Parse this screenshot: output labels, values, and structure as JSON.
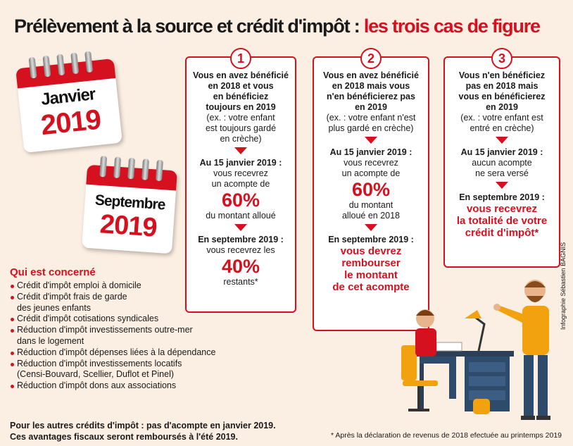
{
  "title": {
    "main": "Prélèvement à la source et crédit d'impôt : ",
    "highlight": "les trois cas de figure"
  },
  "calendar_january": {
    "month": "Janvier",
    "year": "2019"
  },
  "calendar_september": {
    "month": "Septembre",
    "year": "2019"
  },
  "cases": [
    {
      "number": "1",
      "intro": [
        "Vous en avez bénéficié",
        "en 2018 et vous",
        "en bénéficiez",
        "toujours en 2019"
      ],
      "example": [
        "(ex. : votre enfant",
        "est toujours gardé",
        "en crèche)"
      ],
      "jan_label": "Au 15 janvier 2019 :",
      "jan_text": [
        "vous recevrez",
        "un acompte de"
      ],
      "jan_pct": "60%",
      "jan_after": [
        "du montant alloué"
      ],
      "sep_label": "En septembre 2019 :",
      "sep_text": [
        "vous recevrez les"
      ],
      "sep_pct": "40%",
      "sep_after": [
        "restants*"
      ]
    },
    {
      "number": "2",
      "intro": [
        "Vous en avez bénéficié",
        "en 2018 mais vous",
        "n'en bénéficierez pas",
        "en 2019"
      ],
      "example": [
        "(ex. : votre enfant n'est",
        "plus gardé en crèche)"
      ],
      "jan_label": "Au 15 janvier 2019 :",
      "jan_text": [
        "vous recevrez",
        "un acompte de"
      ],
      "jan_pct": "60%",
      "jan_after": [
        "du montant",
        "alloué en 2018"
      ],
      "sep_label": "En septembre 2019 :",
      "sep_red": [
        "vous devrez",
        "rembourser",
        "le montant",
        "de cet acompte"
      ]
    },
    {
      "number": "3",
      "intro": [
        "Vous n'en bénéficiez",
        "pas en 2018 mais",
        "vous en bénéficierez",
        "en 2019"
      ],
      "example": [
        "(ex. : votre enfant est",
        "entré en crèche)"
      ],
      "jan_label": "Au 15 janvier 2019 :",
      "jan_text": [
        "aucun acompte",
        "ne sera versé"
      ],
      "sep_label": "En septembre 2019 :",
      "sep_red": [
        "vous recevrez",
        "la totalité de votre",
        "crédit d'impôt*"
      ]
    }
  ],
  "who": {
    "title": "Qui est concerné",
    "items": [
      "Crédit d'impôt emploi à domicile",
      "Crédit d'impôt frais de garde\ndes jeunes enfants",
      "Crédit d'impôt cotisations syndicales",
      "Réduction d'impôt investissements outre-mer\ndans le logement",
      "Réduction d'impôt dépenses liées à la dépendance",
      "Réduction d'impôt investissements locatifs\n(Censi-Bouvard, Scellier, Duflot et Pinel)",
      "Réduction d'impôt dons aux associations"
    ]
  },
  "footer": [
    "Pour les autres crédits d'impôt : pas d'acompte en janvier 2019.",
    "Ces avantages fiscaux seront remboursés à l'été 2019."
  ],
  "footnote": "* Après la déclaration de revenus de 2018 efectuée au printemps 2019",
  "credit": "Infographie Sébastien BAGNIS",
  "colors": {
    "accent": "#d5101f",
    "background": "#fbeee2"
  }
}
